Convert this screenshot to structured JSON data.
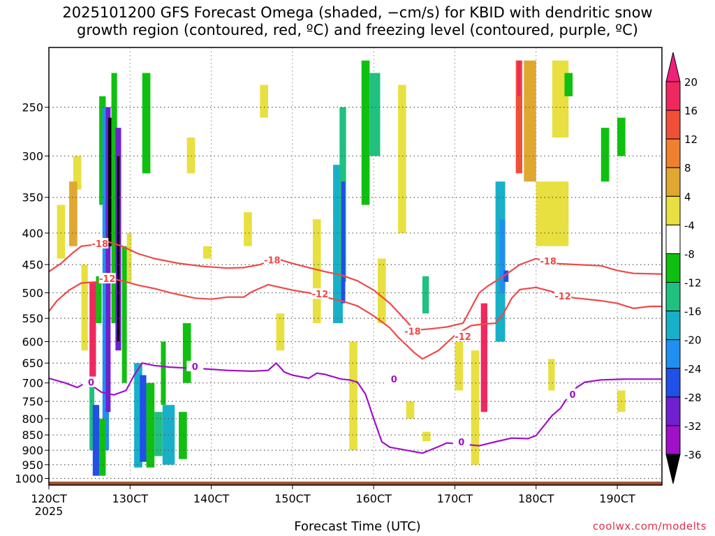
{
  "title": {
    "line1": "2025101200 GFS Forecast Omega (shaded, −cm/s) for KBID with dendritic snow",
    "line2": "growth region (contoured, red, ºC) and freezing level (contoured, purple, ºC)"
  },
  "xlabel": "Forecast Time (UTC)",
  "credit": "coolwx.com/modelts",
  "colors": {
    "dgz_contour": "#f04848",
    "freezing_contour": "#a010c8",
    "ground": "#a0522d"
  },
  "chart_data": {
    "type": "heatmap",
    "x_ticks": [
      {
        "value": 120,
        "label": "120CT",
        "sublabel": "2025"
      },
      {
        "value": 130,
        "label": "130CT"
      },
      {
        "value": 140,
        "label": "140CT"
      },
      {
        "value": 150,
        "label": "150CT"
      },
      {
        "value": 160,
        "label": "160CT"
      },
      {
        "value": 170,
        "label": "170CT"
      },
      {
        "value": 180,
        "label": "180CT"
      },
      {
        "value": 190,
        "label": "190CT"
      }
    ],
    "xlim": [
      120,
      195.5
    ],
    "y_ticks": [
      250,
      300,
      350,
      400,
      450,
      500,
      550,
      600,
      650,
      700,
      750,
      800,
      850,
      900,
      950,
      1000
    ],
    "ylim": [
      1025,
      200
    ],
    "y_scale": "log-pressure",
    "grid": true,
    "colorbar": {
      "levels": [
        20,
        16,
        12,
        8,
        4,
        -4,
        -8,
        -12,
        -16,
        -20,
        -24,
        -28,
        -32,
        -36
      ],
      "colors": [
        "#f5f5f5",
        "#f02860",
        "#f05038",
        "#f08030",
        "#e0a830",
        "#e8e040",
        "#ffffff",
        "#10c010",
        "#20c080",
        "#18b0c8",
        "#2090f0",
        "#2050e8",
        "#7020d0",
        "#a010c8",
        "#a0a0a0"
      ],
      "top_arrow_color": "#f0207a",
      "bottom_arrow_color": "#000000"
    },
    "contours": [
      {
        "name": "-18",
        "color": "#f04848",
        "points": [
          [
            120,
            462
          ],
          [
            121.5,
            448
          ],
          [
            123,
            430
          ],
          [
            124,
            420
          ],
          [
            125.5,
            418
          ],
          [
            127,
            412
          ],
          [
            129,
            420
          ],
          [
            131,
            432
          ],
          [
            133,
            440
          ],
          [
            136,
            448
          ],
          [
            139,
            453
          ],
          [
            142,
            456
          ],
          [
            144,
            455
          ],
          [
            146,
            450
          ],
          [
            148,
            440
          ],
          [
            150,
            448
          ],
          [
            152,
            455
          ],
          [
            154,
            462
          ],
          [
            156,
            468
          ],
          [
            158,
            478
          ],
          [
            160,
            495
          ],
          [
            162,
            520
          ],
          [
            164,
            555
          ],
          [
            165,
            575
          ],
          [
            167,
            572
          ],
          [
            169,
            568
          ],
          [
            171,
            560
          ],
          [
            173,
            500
          ],
          [
            174,
            488
          ],
          [
            176,
            470
          ],
          [
            178,
            450
          ],
          [
            180,
            440
          ],
          [
            182,
            448
          ],
          [
            185,
            450
          ],
          [
            188,
            452
          ],
          [
            190,
            460
          ],
          [
            192,
            465
          ],
          [
            195.5,
            466
          ]
        ],
        "labels": [
          [
            126.3,
            416
          ],
          [
            147.5,
            442
          ],
          [
            164.8,
            577
          ],
          [
            181.5,
            444
          ]
        ]
      },
      {
        "name": "-12",
        "color": "#f04848",
        "points": [
          [
            120,
            536
          ],
          [
            121,
            515
          ],
          [
            122.5,
            495
          ],
          [
            124,
            482
          ],
          [
            126,
            480
          ],
          [
            127.5,
            474
          ],
          [
            129,
            478
          ],
          [
            131,
            486
          ],
          [
            133,
            492
          ],
          [
            135,
            500
          ],
          [
            138,
            510
          ],
          [
            140,
            512
          ],
          [
            142,
            508
          ],
          [
            144,
            508
          ],
          [
            145,
            498
          ],
          [
            147,
            485
          ],
          [
            150,
            495
          ],
          [
            152,
            500
          ],
          [
            154,
            508
          ],
          [
            156,
            515
          ],
          [
            158,
            525
          ],
          [
            160,
            545
          ],
          [
            162,
            570
          ],
          [
            163,
            590
          ],
          [
            165,
            625
          ],
          [
            166,
            640
          ],
          [
            168,
            620
          ],
          [
            170,
            586
          ],
          [
            172,
            565
          ],
          [
            173.5,
            562
          ],
          [
            175,
            560
          ],
          [
            176,
            540
          ],
          [
            177,
            510
          ],
          [
            178,
            494
          ],
          [
            180,
            490
          ],
          [
            182,
            498
          ],
          [
            183,
            506
          ],
          [
            185,
            510
          ],
          [
            188,
            515
          ],
          [
            190,
            520
          ],
          [
            192,
            530
          ],
          [
            194,
            526
          ],
          [
            195.5,
            526
          ]
        ],
        "labels": [
          [
            127.2,
            474
          ],
          [
            153.4,
            502
          ],
          [
            171,
            588
          ],
          [
            183.3,
            506
          ]
        ]
      },
      {
        "name": "0",
        "color": "#a010c8",
        "points": [
          [
            120,
            688
          ],
          [
            122,
            700
          ],
          [
            123.5,
            712
          ],
          [
            124.5,
            700
          ],
          [
            125.5,
            710
          ],
          [
            126.5,
            725
          ],
          [
            128,
            732
          ],
          [
            129.5,
            720
          ],
          [
            130.5,
            680
          ],
          [
            131.5,
            650
          ],
          [
            133,
            656
          ],
          [
            135,
            660
          ],
          [
            137,
            662
          ],
          [
            139,
            664
          ],
          [
            142,
            668
          ],
          [
            145,
            670
          ],
          [
            147,
            668
          ],
          [
            148,
            650
          ],
          [
            149,
            672
          ],
          [
            150,
            680
          ],
          [
            152,
            688
          ],
          [
            153,
            675
          ],
          [
            154,
            678
          ],
          [
            156,
            690
          ],
          [
            157,
            692
          ],
          [
            158,
            698
          ],
          [
            159,
            730
          ],
          [
            160,
            800
          ],
          [
            161,
            872
          ],
          [
            162,
            890
          ],
          [
            164,
            900
          ],
          [
            166,
            910
          ],
          [
            168,
            888
          ],
          [
            169,
            876
          ],
          [
            171,
            880
          ],
          [
            173,
            885
          ],
          [
            175,
            872
          ],
          [
            177,
            860
          ],
          [
            179,
            862
          ],
          [
            180,
            852
          ],
          [
            182,
            790
          ],
          [
            183,
            770
          ],
          [
            184,
            735
          ],
          [
            185,
            712
          ],
          [
            186,
            698
          ],
          [
            188,
            692
          ],
          [
            191,
            690
          ],
          [
            195.5,
            690
          ]
        ],
        "labels": [
          [
            125.2,
            698
          ],
          [
            138,
            658
          ],
          [
            162.5,
            690
          ],
          [
            170.8,
            872
          ],
          [
            184.5,
            730
          ]
        ]
      }
    ],
    "shading": {
      "cells": [
        [
          123,
          124,
          300,
          340,
          "#e8e040"
        ],
        [
          121,
          122,
          360,
          440,
          "#e8e040"
        ],
        [
          122.5,
          123.5,
          330,
          420,
          "#e0a830"
        ],
        [
          124,
          124.8,
          450,
          620,
          "#e8e040"
        ],
        [
          125,
          125.8,
          480,
          690,
          "#f02860"
        ],
        [
          125.8,
          126.5,
          470,
          560,
          "#10c010"
        ],
        [
          126.2,
          127,
          240,
          360,
          "#10c010"
        ],
        [
          126.6,
          127.4,
          250,
          900,
          "#2090f0"
        ],
        [
          127,
          127.6,
          250,
          780,
          "#7020d0"
        ],
        [
          127.3,
          127.7,
          260,
          420,
          "#000000"
        ],
        [
          127.7,
          128.4,
          220,
          560,
          "#10c010"
        ],
        [
          128.2,
          128.9,
          270,
          620,
          "#7020d0"
        ],
        [
          128.4,
          128.7,
          300,
          600,
          "#000000"
        ],
        [
          129,
          129.6,
          420,
          700,
          "#10c010"
        ],
        [
          129.6,
          130.2,
          400,
          480,
          "#e8e040"
        ],
        [
          130.5,
          131.5,
          650,
          960,
          "#18b0c8"
        ],
        [
          131.2,
          132,
          680,
          940,
          "#2050e8"
        ],
        [
          132,
          133,
          700,
          960,
          "#10c010"
        ],
        [
          133,
          134,
          780,
          920,
          "#20c080"
        ],
        [
          134,
          135.5,
          760,
          950,
          "#18b0c8"
        ],
        [
          136,
          137,
          780,
          930,
          "#10c010"
        ],
        [
          131.5,
          132.5,
          220,
          320,
          "#10c010"
        ],
        [
          133.8,
          134.4,
          600,
          760,
          "#10c010"
        ],
        [
          136.5,
          137.5,
          560,
          700,
          "#10c010"
        ],
        [
          125,
          125.6,
          700,
          900,
          "#20c080"
        ],
        [
          125.4,
          126.2,
          760,
          990,
          "#2050e8"
        ],
        [
          126.2,
          127,
          800,
          990,
          "#10c010"
        ],
        [
          137,
          138,
          280,
          320,
          "#e8e040"
        ],
        [
          139,
          140,
          420,
          440,
          "#e8e040"
        ],
        [
          144,
          145,
          370,
          420,
          "#e8e040"
        ],
        [
          146,
          147,
          230,
          260,
          "#e8e040"
        ],
        [
          148,
          149,
          540,
          620,
          "#e8e040"
        ],
        [
          152.5,
          153.5,
          380,
          560,
          "#e8e040"
        ],
        [
          155,
          156.2,
          310,
          560,
          "#18b0c8"
        ],
        [
          155.8,
          156.6,
          250,
          480,
          "#20c080"
        ],
        [
          156,
          156.5,
          330,
          520,
          "#2050e8"
        ],
        [
          157,
          158,
          600,
          900,
          "#e8e040"
        ],
        [
          158.5,
          159.5,
          210,
          360,
          "#10c010"
        ],
        [
          159.5,
          160.8,
          220,
          300,
          "#20c080"
        ],
        [
          160.5,
          161.5,
          440,
          560,
          "#e8e040"
        ],
        [
          163,
          164,
          230,
          400,
          "#e8e040"
        ],
        [
          166,
          166.8,
          470,
          540,
          "#20c080"
        ],
        [
          170,
          171,
          600,
          720,
          "#e8e040"
        ],
        [
          172,
          173,
          620,
          950,
          "#e8e040"
        ],
        [
          173.2,
          174,
          520,
          780,
          "#f02860"
        ],
        [
          175,
          176.2,
          330,
          600,
          "#18b0c8"
        ],
        [
          175.5,
          176.2,
          380,
          500,
          "#2090f0"
        ],
        [
          176,
          176.6,
          460,
          480,
          "#2050e8"
        ],
        [
          177.5,
          178.3,
          210,
          320,
          "#f05038"
        ],
        [
          177.7,
          178.1,
          210,
          240,
          "#f02860"
        ],
        [
          178.5,
          180,
          210,
          330,
          "#e0a830"
        ],
        [
          180,
          184,
          330,
          420,
          "#e8e040"
        ],
        [
          182,
          184,
          210,
          280,
          "#e8e040"
        ],
        [
          188,
          189,
          270,
          330,
          "#10c010"
        ],
        [
          190,
          191,
          260,
          300,
          "#10c010"
        ],
        [
          190,
          191,
          720,
          780,
          "#e8e040"
        ],
        [
          183.5,
          184.5,
          220,
          240,
          "#10c010"
        ],
        [
          164,
          165,
          750,
          800,
          "#e8e040"
        ],
        [
          166,
          167,
          840,
          870,
          "#e8e040"
        ],
        [
          181.5,
          182.3,
          640,
          720,
          "#e8e040"
        ]
      ]
    }
  }
}
